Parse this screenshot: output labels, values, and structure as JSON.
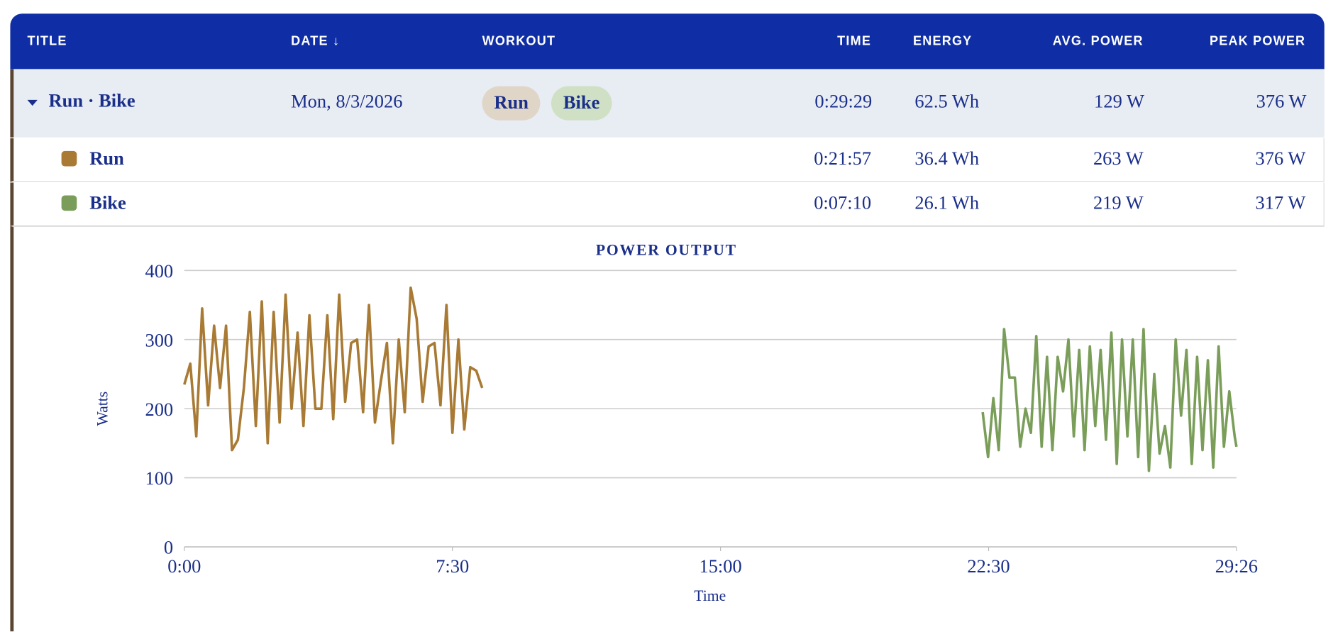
{
  "table": {
    "header": [
      "TITLE",
      "DATE ↓",
      "WORKOUT",
      "TIME",
      "ENERGY",
      "AVG. POWER",
      "PEAK POWER"
    ],
    "group": {
      "title": "Run · Bike",
      "date": "Mon, 8/3/2026",
      "tags": [
        "Run",
        "Bike"
      ],
      "time": "0:29:29",
      "energy": "62.5 Wh",
      "avg_power": "129 W",
      "peak_power": "376 W"
    },
    "rows": [
      {
        "name": "Run",
        "time": "0:21:57",
        "energy": "36.4 Wh",
        "avg_power": "263 W",
        "peak_power": "376 W"
      },
      {
        "name": "Bike",
        "time": "0:07:10",
        "energy": "26.1 Wh",
        "avg_power": "219 W",
        "peak_power": "317 W"
      }
    ]
  },
  "chart_data": {
    "type": "line",
    "title": "POWER OUTPUT",
    "xlabel": "Time",
    "ylabel": "Watts",
    "xlim": [
      0,
      1766
    ],
    "xticks": [
      {
        "value": 0,
        "label": "0:00"
      },
      {
        "value": 450,
        "label": "7:30"
      },
      {
        "value": 900,
        "label": "15:00"
      },
      {
        "value": 1350,
        "label": "22:30"
      },
      {
        "value": 1766,
        "label": "29:26"
      }
    ],
    "ylim": [
      0,
      400
    ],
    "yticks": [
      0,
      100,
      200,
      300,
      400
    ],
    "grid": true,
    "series": [
      {
        "name": "Run",
        "color": "#a87a34",
        "x": [
          0,
          10,
          20,
          30,
          40,
          50,
          60,
          70,
          80,
          90,
          100,
          110,
          120,
          130,
          140,
          150,
          160,
          170,
          180,
          190,
          200,
          210,
          220,
          230,
          240,
          250,
          260,
          270,
          280,
          290,
          300,
          310,
          320,
          330,
          340,
          350,
          360,
          370,
          380,
          390,
          400,
          410,
          420,
          430,
          440,
          450,
          460,
          470,
          480,
          490,
          500
        ],
        "values": [
          235,
          265,
          160,
          345,
          205,
          320,
          230,
          320,
          140,
          155,
          230,
          340,
          175,
          355,
          150,
          340,
          180,
          365,
          200,
          310,
          175,
          335,
          200,
          200,
          335,
          185,
          365,
          210,
          295,
          300,
          195,
          350,
          180,
          240,
          295,
          150,
          300,
          195,
          375,
          330,
          210,
          290,
          295,
          205,
          350,
          165,
          300,
          170,
          260,
          255,
          230
        ]
      },
      {
        "name": "Bike",
        "color": "#7a9e5a",
        "x": [
          1340,
          1349,
          1358,
          1367,
          1376,
          1385,
          1394,
          1403,
          1412,
          1421,
          1430,
          1439,
          1448,
          1457,
          1466,
          1475,
          1484,
          1493,
          1502,
          1511,
          1520,
          1529,
          1538,
          1547,
          1556,
          1565,
          1574,
          1583,
          1592,
          1601,
          1610,
          1619,
          1628,
          1637,
          1646,
          1655,
          1664,
          1673,
          1682,
          1691,
          1700,
          1709,
          1718,
          1727,
          1736,
          1745,
          1754,
          1763,
          1766
        ],
        "values": [
          195,
          130,
          215,
          140,
          315,
          245,
          245,
          145,
          200,
          165,
          305,
          145,
          275,
          140,
          275,
          225,
          300,
          160,
          285,
          140,
          290,
          175,
          285,
          155,
          310,
          120,
          300,
          160,
          300,
          130,
          315,
          110,
          250,
          135,
          175,
          115,
          300,
          190,
          285,
          120,
          275,
          140,
          270,
          115,
          290,
          145,
          225,
          160,
          145
        ]
      }
    ]
  }
}
